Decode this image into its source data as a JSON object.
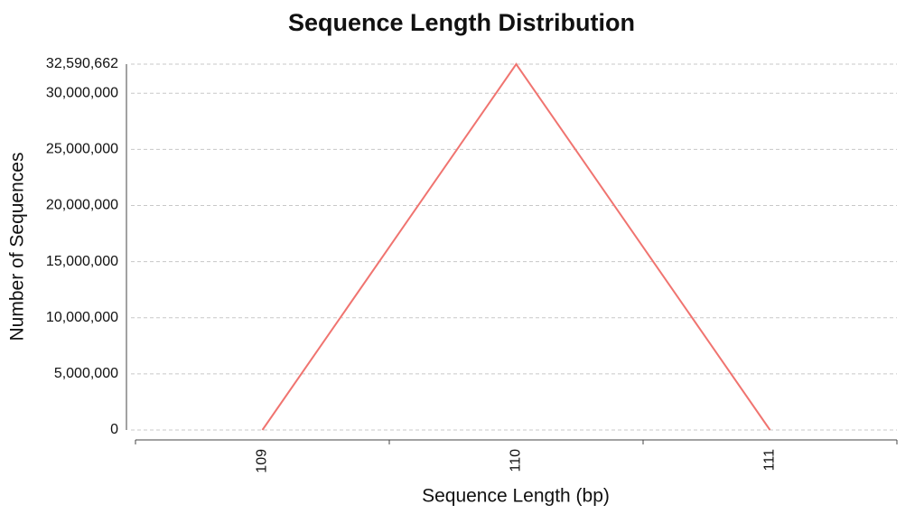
{
  "chart_data": {
    "type": "line",
    "title": "Sequence Length Distribution",
    "x_label": "Sequence Length (bp)",
    "y_label": "Number of Sequences",
    "categories": [
      "109",
      "110",
      "111"
    ],
    "series": [
      {
        "name": "Sequences",
        "color": "#f07470",
        "values": [
          0,
          32590662,
          0
        ]
      }
    ],
    "ylim": [
      0,
      32590662
    ],
    "yticks": [
      0,
      {
        "value": 5000000,
        "label": "5,000,000"
      },
      {
        "value": 10000000,
        "label": "10,000,000"
      },
      {
        "value": 15000000,
        "label": "15,000,000"
      },
      {
        "value": 20000000,
        "label": "20,000,000"
      },
      {
        "value": 25000000,
        "label": "25,000,000"
      },
      {
        "value": 30000000,
        "label": "30,000,000"
      },
      {
        "value": 32590662,
        "label": "32,590,662"
      }
    ],
    "grid": true
  }
}
